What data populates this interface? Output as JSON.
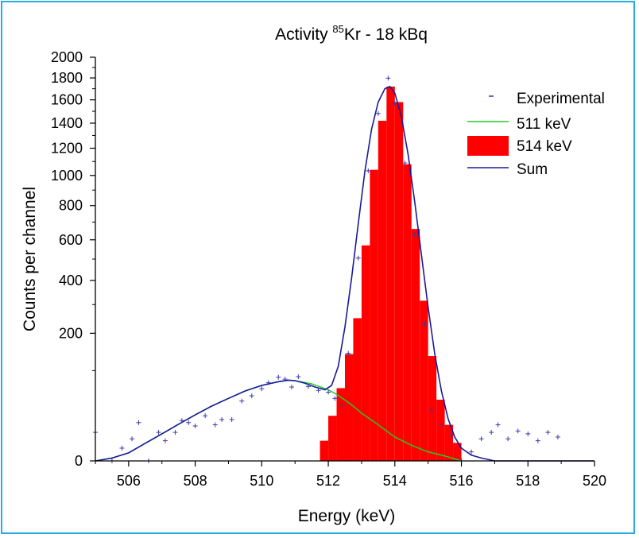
{
  "chart_data": {
    "type": "histogram-with-fit",
    "title": {
      "prefix": "Activity ",
      "superscript": "85",
      "suffix": "Kr - 18 kBq"
    },
    "xlabel": "Energy (keV)",
    "ylabel": "Counts per channel",
    "xlim": [
      505,
      520
    ],
    "ylim": [
      0,
      2000
    ],
    "y_scale": "sqrt",
    "x_ticks": [
      506,
      508,
      510,
      512,
      514,
      516,
      518,
      520
    ],
    "y_ticks": [
      0,
      200,
      400,
      600,
      800,
      1000,
      1200,
      1400,
      1600,
      1800,
      2000
    ],
    "legend": {
      "position": "top-right",
      "entries": [
        {
          "label": "Experimental",
          "symbol": "dash"
        },
        {
          "label": "511 keV",
          "symbol": "line"
        },
        {
          "label": "514 keV",
          "symbol": "box"
        },
        {
          "label": "Sum",
          "symbol": "line"
        }
      ]
    },
    "colors": {
      "experimental": "#3a3aa8",
      "peak_511": "#22cc22",
      "peak_514": "#ff0000",
      "sum": "#1a1a99"
    },
    "experimental": {
      "name": "Experimental",
      "x": [
        505.0,
        505.5,
        505.8,
        506.1,
        506.3,
        506.6,
        506.9,
        507.1,
        507.4,
        507.6,
        507.8,
        508.0,
        508.3,
        508.6,
        508.8,
        509.1,
        509.4,
        509.7,
        510.0,
        510.2,
        510.5,
        510.7,
        510.9,
        511.1,
        511.4,
        511.7,
        512.0,
        512.2,
        512.4,
        512.6,
        512.9,
        513.2,
        513.5,
        513.8,
        514.0,
        514.3,
        514.6,
        514.9,
        515.1,
        515.4,
        515.7,
        516.0,
        516.3,
        516.6,
        516.9,
        517.1,
        517.4,
        517.7,
        518.0,
        518.3,
        518.6,
        518.9
      ],
      "y": [
        10,
        0,
        2,
        6,
        18,
        0,
        10,
        5,
        10,
        20,
        18,
        15,
        25,
        16,
        21,
        21,
        44,
        52,
        64,
        75,
        86,
        82,
        67,
        87,
        68,
        61,
        58,
        48,
        38,
        142,
        505,
        1033,
        1481,
        1798,
        1568,
        1089,
        628,
        230,
        32,
        16,
        8,
        0,
        1,
        6,
        10,
        16,
        6,
        11,
        9,
        5,
        10,
        7
      ]
    },
    "peak_511": {
      "name": "511 keV",
      "x": [
        505.0,
        505.5,
        506.0,
        506.5,
        507.0,
        507.5,
        508.0,
        508.5,
        509.0,
        509.5,
        510.0,
        510.5,
        510.8,
        511.0,
        511.5,
        512.0,
        512.2,
        512.4,
        512.6,
        512.8,
        513.0,
        513.5,
        514.0,
        514.5,
        515.0,
        515.5,
        516.0
      ],
      "y": [
        0,
        0.1,
        0.8,
        3.8,
        9,
        16.5,
        26,
        37,
        48,
        60,
        70,
        77,
        80,
        79,
        73,
        62,
        56,
        49,
        42,
        35,
        28,
        16,
        7,
        3,
        1,
        0.3,
        0
      ]
    },
    "peak_514": {
      "name": "514 keV",
      "bin_width": 0.25,
      "bin_starts": [
        511.75,
        512.0,
        512.25,
        512.5,
        512.75,
        513.0,
        513.25,
        513.5,
        513.75,
        514.0,
        514.25,
        514.5,
        514.75,
        515.0,
        515.25,
        515.5,
        515.75
      ],
      "values": [
        5,
        25,
        65,
        140,
        250,
        570,
        1040,
        1420,
        1720,
        1580,
        1080,
        660,
        315,
        135,
        46,
        16,
        4
      ]
    },
    "sum": {
      "name": "Sum",
      "x": [
        505.0,
        505.5,
        506.0,
        506.5,
        507.0,
        507.5,
        508.0,
        508.5,
        509.0,
        509.5,
        510.0,
        510.5,
        510.8,
        511.0,
        511.3,
        511.6,
        511.9,
        512.1,
        512.3,
        512.5,
        512.7,
        512.9,
        513.1,
        513.3,
        513.5,
        513.7,
        513.85,
        514.0,
        514.2,
        514.4,
        514.6,
        514.8,
        515.0,
        515.2,
        515.4,
        515.6,
        515.8,
        516.0,
        516.3,
        516.6,
        517.0,
        520.0
      ],
      "y": [
        0,
        0.1,
        0.8,
        3.8,
        9,
        16.5,
        26,
        37,
        48,
        60,
        70,
        77,
        80,
        79,
        74,
        67,
        62,
        70,
        110,
        220,
        410,
        690,
        1030,
        1350,
        1580,
        1700,
        1720,
        1660,
        1450,
        1150,
        820,
        520,
        290,
        140,
        60,
        22,
        7,
        2,
        0.4,
        0.1,
        0,
        0
      ]
    }
  }
}
